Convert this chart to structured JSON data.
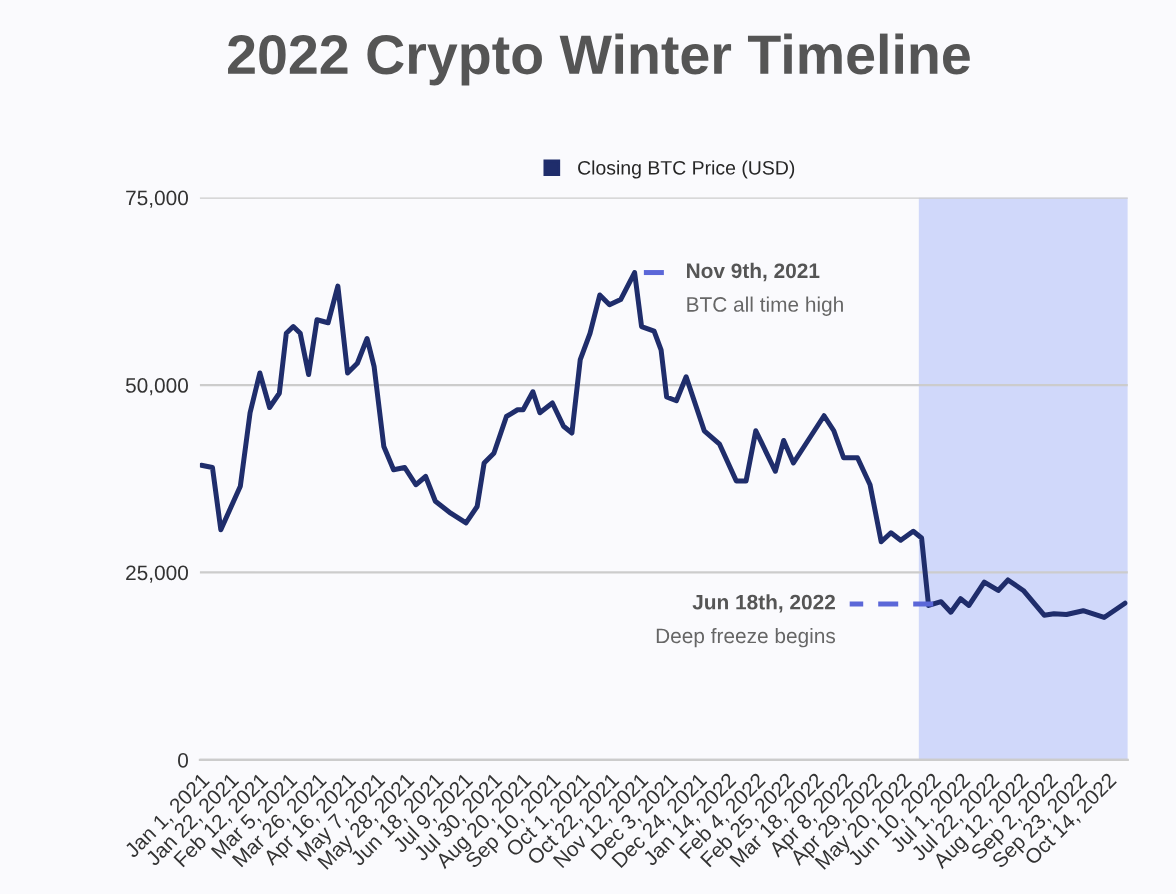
{
  "chart_data": {
    "type": "line",
    "title": "2022 Crypto Winter Timeline",
    "x": [
      "2021-01-02",
      "2021-01-10",
      "2021-01-16",
      "2021-01-30",
      "2021-02-06",
      "2021-02-13",
      "2021-02-20",
      "2021-02-27",
      "2021-03-04",
      "2021-03-09",
      "2021-03-14",
      "2021-03-20",
      "2021-03-26",
      "2021-04-03",
      "2021-04-10",
      "2021-04-17",
      "2021-04-24",
      "2021-05-01",
      "2021-05-06",
      "2021-05-13",
      "2021-05-20",
      "2021-05-28",
      "2021-06-05",
      "2021-06-12",
      "2021-06-19",
      "2021-06-30",
      "2021-07-11",
      "2021-07-19",
      "2021-07-24",
      "2021-07-31",
      "2021-08-09",
      "2021-08-17",
      "2021-08-21",
      "2021-08-28",
      "2021-09-02",
      "2021-09-11",
      "2021-09-19",
      "2021-09-25",
      "2021-10-01",
      "2021-10-08",
      "2021-10-15",
      "2021-10-22",
      "2021-10-30",
      "2021-11-09",
      "2021-11-14",
      "2021-11-23",
      "2021-11-28",
      "2021-12-02",
      "2021-12-09",
      "2021-12-16",
      "2021-12-29",
      "2022-01-09",
      "2022-01-21",
      "2022-01-28",
      "2022-02-04",
      "2022-02-18",
      "2022-02-24",
      "2022-03-03",
      "2022-03-25",
      "2022-04-01",
      "2022-04-08",
      "2022-04-18",
      "2022-04-27",
      "2022-05-05",
      "2022-05-12",
      "2022-05-19",
      "2022-05-28",
      "2022-06-03",
      "2022-06-08",
      "2022-06-17",
      "2022-06-24",
      "2022-07-01",
      "2022-07-07",
      "2022-07-18",
      "2022-07-28",
      "2022-08-04",
      "2022-08-15",
      "2022-08-30",
      "2022-09-06",
      "2022-09-15",
      "2022-09-27",
      "2022-10-12",
      "2022-10-27"
    ],
    "series": [
      {
        "name": "Closing BTC Price (USD)",
        "color": "#1f2d6b",
        "values": [
          39300,
          39000,
          30700,
          36500,
          46300,
          51600,
          47000,
          48900,
          56900,
          57800,
          56900,
          51400,
          58700,
          58300,
          63200,
          51600,
          52900,
          56200,
          52500,
          41800,
          38700,
          39000,
          36700,
          37800,
          34500,
          32900,
          31600,
          33800,
          39600,
          40900,
          45800,
          46700,
          46700,
          49100,
          46300,
          47600,
          44500,
          43600,
          53400,
          56900,
          62000,
          60700,
          61400,
          65000,
          57800,
          57200,
          54700,
          48400,
          47900,
          51100,
          43900,
          42100,
          37200,
          37200,
          43900,
          38500,
          42600,
          39600,
          45900,
          43900,
          40300,
          40300,
          36700,
          29100,
          30300,
          29300,
          30500,
          29600,
          20600,
          21100,
          19700,
          21500,
          20600,
          23700,
          22600,
          24000,
          22600,
          19300,
          19500,
          19400,
          19900,
          19000,
          20900
        ]
      }
    ],
    "xlim": [
      "2021-01-01",
      "2022-10-29"
    ],
    "xticks": [
      {
        "value": "2021-01-01",
        "label": "Jan 1, 2021"
      },
      {
        "value": "2021-01-22",
        "label": "Jan 22, 2021"
      },
      {
        "value": "2021-02-12",
        "label": "Feb 12, 2021"
      },
      {
        "value": "2021-03-05",
        "label": "Mar 5, 2021"
      },
      {
        "value": "2021-03-26",
        "label": "Mar 26, 2021"
      },
      {
        "value": "2021-04-16",
        "label": "Apr 16, 2021"
      },
      {
        "value": "2021-05-07",
        "label": "May 7, 2021"
      },
      {
        "value": "2021-05-28",
        "label": "May 28, 2021"
      },
      {
        "value": "2021-06-18",
        "label": "Jun 18, 2021"
      },
      {
        "value": "2021-07-09",
        "label": "Jul 9, 2021"
      },
      {
        "value": "2021-07-30",
        "label": "Jul 30, 2021"
      },
      {
        "value": "2021-08-20",
        "label": "Aug 20, 2021"
      },
      {
        "value": "2021-09-10",
        "label": "Sep 10, 2021"
      },
      {
        "value": "2021-10-01",
        "label": "Oct 1, 2021"
      },
      {
        "value": "2021-10-22",
        "label": "Oct 22, 2021"
      },
      {
        "value": "2021-11-12",
        "label": "Nov 12, 2021"
      },
      {
        "value": "2021-12-03",
        "label": "Dec 3, 2021"
      },
      {
        "value": "2021-12-24",
        "label": "Dec 24, 2021"
      },
      {
        "value": "2022-01-14",
        "label": "Jan 14, 2022"
      },
      {
        "value": "2022-02-04",
        "label": "Feb 4, 2022"
      },
      {
        "value": "2022-02-25",
        "label": "Feb 25, 2022"
      },
      {
        "value": "2022-03-18",
        "label": "Mar 18, 2022"
      },
      {
        "value": "2022-04-08",
        "label": "Apr 8, 2022"
      },
      {
        "value": "2022-04-29",
        "label": "Apr 29, 2022"
      },
      {
        "value": "2022-05-20",
        "label": "May 20, 2022"
      },
      {
        "value": "2022-06-10",
        "label": "Jun 10, 2022"
      },
      {
        "value": "2022-07-01",
        "label": "Jul 1, 2022"
      },
      {
        "value": "2022-07-22",
        "label": "Jul 22, 2022"
      },
      {
        "value": "2022-08-12",
        "label": "Aug 12, 2022"
      },
      {
        "value": "2022-09-02",
        "label": "Sep 2, 2022"
      },
      {
        "value": "2022-09-23",
        "label": "Sep 23, 2022"
      },
      {
        "value": "2022-10-14",
        "label": "Oct 14, 2022"
      }
    ],
    "ylim": [
      0,
      75000
    ],
    "yticks": [
      {
        "value": 0,
        "label": "0"
      },
      {
        "value": 25000,
        "label": "25,000"
      },
      {
        "value": 50000,
        "label": "50,000"
      },
      {
        "value": 75000,
        "label": "75,000"
      }
    ],
    "bands": [
      {
        "axis": "x",
        "from": "2022-06-01",
        "to": "2022-10-29",
        "color": "#d0d8fa"
      }
    ],
    "annotations": [
      {
        "text": "Nov 9th, 2021\nBTC all time high",
        "x": "2021-11-09",
        "y": 65000
      },
      {
        "text": "Jun 18th, 2022\nDeep freeze begins",
        "x": "2022-06-18",
        "y": 20800
      }
    ],
    "grid": "y",
    "legend": "top",
    "line_style": "solid",
    "marker": "none"
  }
}
